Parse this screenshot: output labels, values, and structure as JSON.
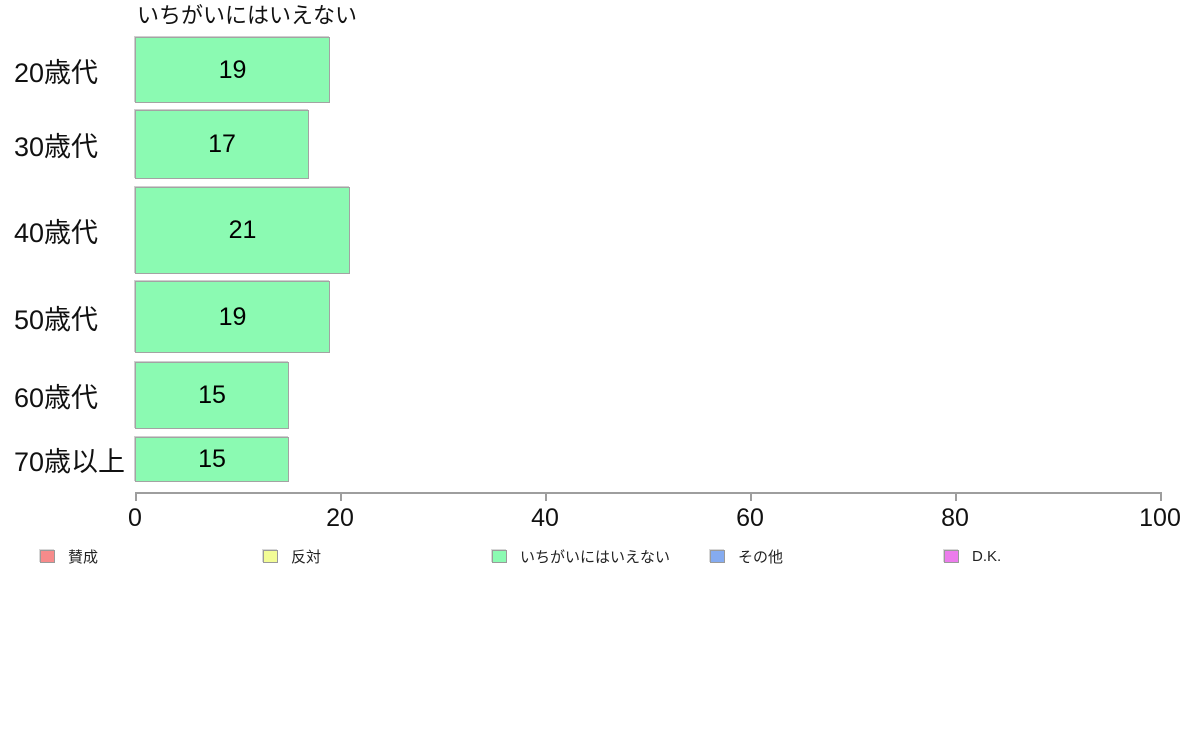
{
  "chart_data": {
    "type": "bar",
    "orientation": "horizontal",
    "title": "いちがいにはいえない",
    "categories": [
      "20歳代",
      "30歳代",
      "40歳代",
      "50歳代",
      "60歳代",
      "70歳以上"
    ],
    "values": [
      19,
      17,
      21,
      19,
      15,
      15
    ],
    "value_labels": [
      "19",
      "17",
      "21",
      "19",
      "15",
      "15"
    ],
    "xlabel": "",
    "ylabel": "",
    "xlim": [
      0,
      100
    ],
    "x_ticks": [
      "0",
      "20",
      "40",
      "60",
      "80",
      "100"
    ],
    "x_tick_values": [
      0,
      20,
      40,
      60,
      80,
      100
    ],
    "grid": false,
    "bar_color": "#8BFAB2",
    "bar_border_color": "#a3a3a3",
    "legend_position": "bottom",
    "legend": [
      {
        "label": "賛成",
        "color": "#F78B8B"
      },
      {
        "label": "反対",
        "color": "#F2FC96"
      },
      {
        "label": "いちがいにはいえない",
        "color": "#8BFAB2"
      },
      {
        "label": "その他",
        "color": "#85ABF0"
      },
      {
        "label": "D.K.",
        "color": "#EC7CEC"
      }
    ]
  }
}
